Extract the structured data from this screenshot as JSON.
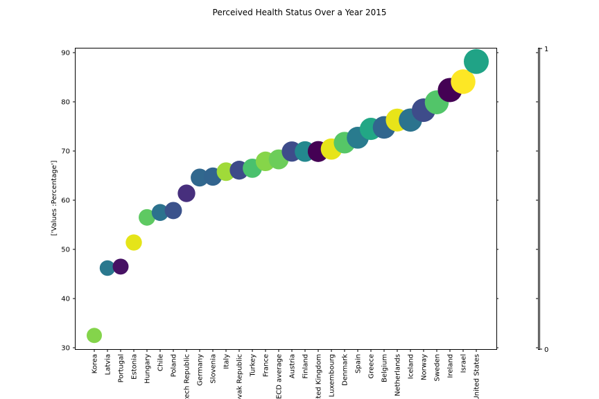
{
  "chart_data": {
    "type": "scatter",
    "title": "Perceived Health Status Over a Year 2015",
    "xlabel": "",
    "ylabel": "['Values :Percentage']",
    "ylim": [
      29.5,
      91
    ],
    "yticks": [
      30,
      40,
      50,
      60,
      70,
      80,
      90
    ],
    "grid": false,
    "categories": [
      "Korea",
      "Latvia",
      "Portugal",
      "Estonia",
      "Hungary",
      "Chile",
      "Poland",
      "Czech Republic",
      "Germany",
      "Slovenia",
      "Italy",
      "Slovak Republic",
      "Turkey",
      "France",
      "OECD average",
      "Austria",
      "Finland",
      "United Kingdom",
      "Luxembourg",
      "Denmark",
      "Spain",
      "Greece",
      "Belgium",
      "Netherlands",
      "Iceland",
      "Norway",
      "Sweden",
      "Ireland",
      "Israel",
      "United States"
    ],
    "values": [
      32.5,
      46.2,
      46.5,
      51.4,
      56.5,
      57.5,
      57.9,
      61.4,
      64.6,
      64.8,
      65.8,
      66.1,
      66.5,
      67.9,
      68.3,
      69.9,
      69.9,
      69.9,
      70.4,
      71.7,
      72.7,
      74.5,
      74.8,
      76.3,
      76.3,
      78.3,
      79.9,
      82.4,
      84.1,
      88.2
    ],
    "colors": [
      "#84d44b",
      "#2a788e",
      "#471164",
      "#e5e419",
      "#5ec962",
      "#2c728e",
      "#3b528b",
      "#472f7d",
      "#31688e",
      "#32648e",
      "#a0da39",
      "#3e4a89",
      "#4ac16d",
      "#86d549",
      "#6ccd5a",
      "#3e4c8a",
      "#23888e",
      "#440154",
      "#e7e419",
      "#56c667",
      "#297b8e",
      "#22a785",
      "#31668e",
      "#e8e419",
      "#2c738e",
      "#3e4c8a",
      "#52c569",
      "#440154",
      "#fde725",
      "#20a386"
    ],
    "colorbar": {
      "tick_labels": [
        "0",
        "1"
      ]
    }
  }
}
